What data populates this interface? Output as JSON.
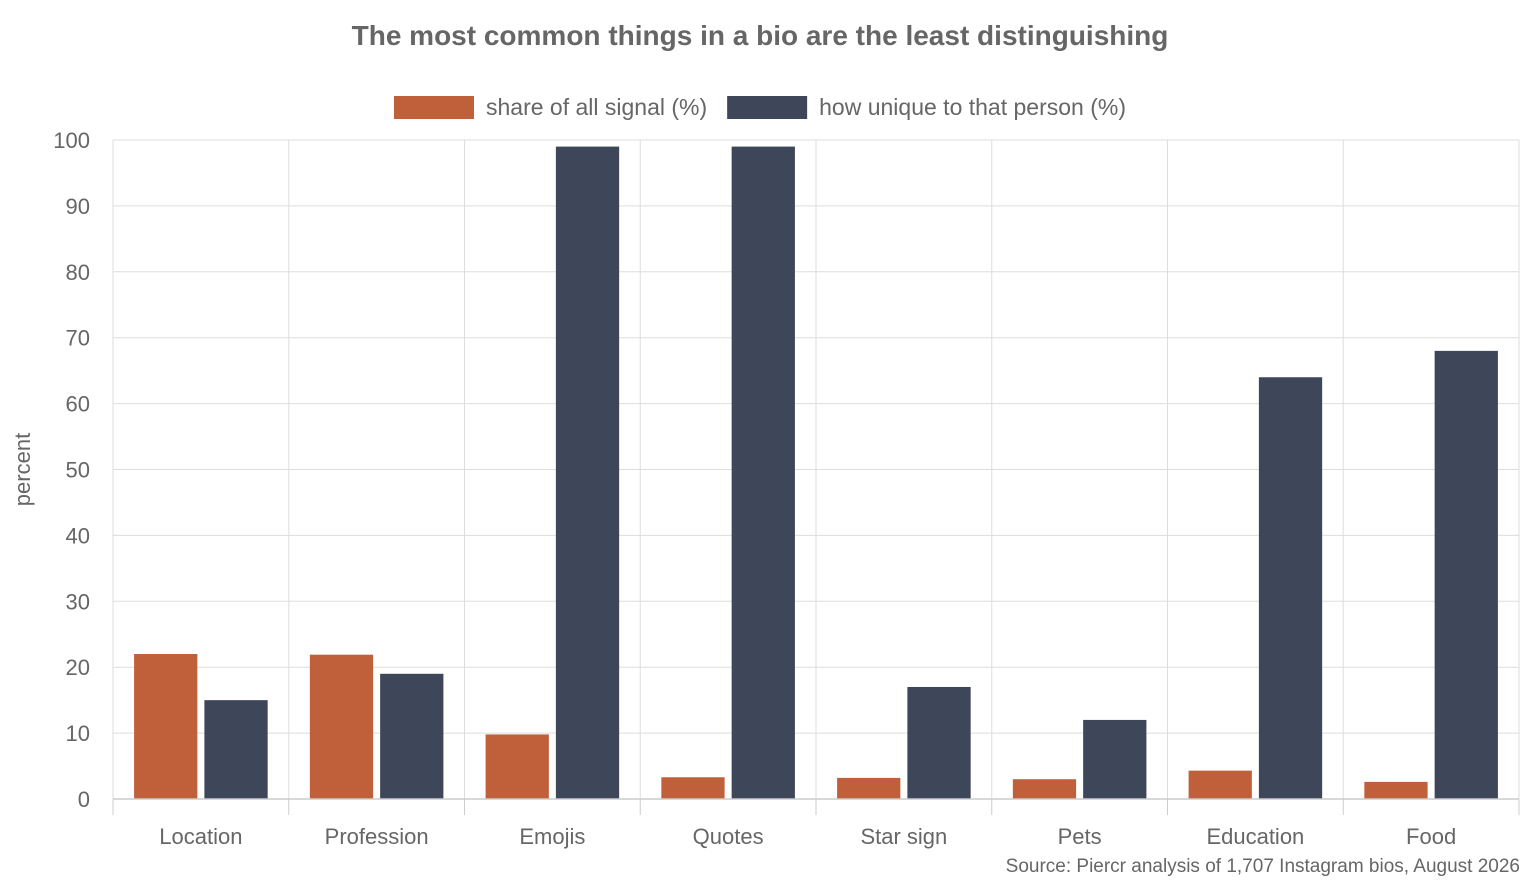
{
  "chart_data": {
    "type": "bar",
    "title": "The most common things in a bio are the least distinguishing",
    "ylabel": "percent",
    "xlabel": "",
    "ylim": [
      0,
      100
    ],
    "yticks": [
      0,
      10,
      20,
      30,
      40,
      50,
      60,
      70,
      80,
      90,
      100
    ],
    "grid": true,
    "legend_position": "top-center",
    "categories": [
      "Location",
      "Profession",
      "Emojis",
      "Quotes",
      "Star sign",
      "Pets",
      "Education",
      "Food"
    ],
    "series": [
      {
        "name": "share of all signal (%)",
        "color": "#c0603a",
        "values": [
          22,
          21.9,
          9.8,
          3.3,
          3.2,
          3.0,
          4.3,
          2.6
        ]
      },
      {
        "name": "how unique to that person (%)",
        "color": "#3d4759",
        "values": [
          15,
          19,
          99,
          99,
          17,
          12,
          64,
          68
        ]
      }
    ],
    "source": "Source: Piercr analysis of 1,707 Instagram bios, August 2026"
  }
}
